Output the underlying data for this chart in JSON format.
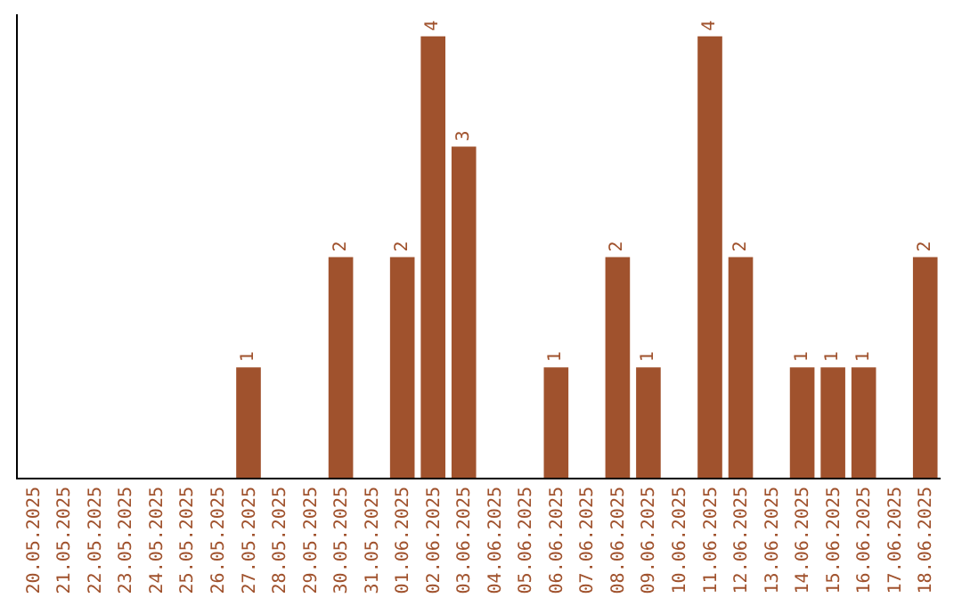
{
  "chart_data": {
    "type": "bar",
    "categories": [
      "20.05.2025",
      "21.05.2025",
      "22.05.2025",
      "23.05.2025",
      "24.05.2025",
      "25.05.2025",
      "26.05.2025",
      "27.05.2025",
      "28.05.2025",
      "29.05.2025",
      "30.05.2025",
      "31.05.2025",
      "01.06.2025",
      "02.06.2025",
      "03.06.2025",
      "04.06.2025",
      "05.06.2025",
      "06.06.2025",
      "07.06.2025",
      "08.06.2025",
      "09.06.2025",
      "10.06.2025",
      "11.06.2025",
      "12.06.2025",
      "13.06.2025",
      "14.06.2025",
      "15.06.2025",
      "16.06.2025",
      "17.06.2025",
      "18.06.2025"
    ],
    "values": [
      0,
      0,
      0,
      0,
      0,
      0,
      0,
      1,
      0,
      0,
      2,
      0,
      2,
      4,
      3,
      0,
      0,
      1,
      0,
      2,
      1,
      0,
      4,
      2,
      0,
      1,
      1,
      1,
      0,
      2
    ],
    "value_labels": [
      null,
      null,
      null,
      null,
      null,
      null,
      null,
      "1",
      null,
      null,
      "2",
      null,
      "2",
      "4",
      "3",
      null,
      null,
      "1",
      null,
      "2",
      "1",
      null,
      "4",
      "2",
      null,
      "1",
      "1",
      "1",
      null,
      "2"
    ],
    "color": "#a0522d",
    "tick_labels": "x",
    "legend": false
  }
}
